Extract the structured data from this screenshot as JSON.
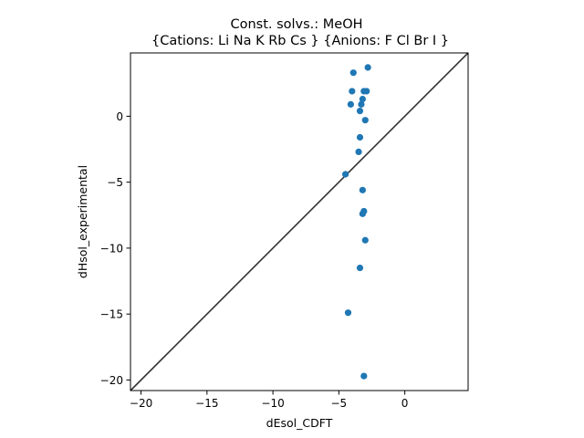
{
  "chart_data": {
    "type": "scatter",
    "title_line1": "Const. solvs.: MeOH",
    "title_line2": "{Cations: Li Na K Rb Cs } {Anions: F Cl Br I }",
    "xlabel": "dEsol_CDFT",
    "ylabel": "dHsol_experimental",
    "xlim": [
      -20.8,
      4.8
    ],
    "ylim": [
      -20.8,
      4.8
    ],
    "xticks": [
      -20,
      -15,
      -10,
      -5,
      0
    ],
    "yticks": [
      -20,
      -15,
      -10,
      -5,
      0
    ],
    "xtick_labels": [
      "−20",
      "−15",
      "−10",
      "−5",
      "0"
    ],
    "ytick_labels": [
      "−20",
      "−15",
      "−10",
      "−5",
      "0"
    ],
    "grid": false,
    "reference_line": "y = x",
    "marker_color": "#1f77b4",
    "line_color": "#333333",
    "points": [
      {
        "x": -3.9,
        "y": 3.3
      },
      {
        "x": -2.8,
        "y": 3.7
      },
      {
        "x": -4.0,
        "y": 1.9
      },
      {
        "x": -3.1,
        "y": 1.9
      },
      {
        "x": -2.9,
        "y": 1.9
      },
      {
        "x": -3.2,
        "y": 1.3
      },
      {
        "x": -4.1,
        "y": 0.9
      },
      {
        "x": -3.3,
        "y": 0.9
      },
      {
        "x": -3.4,
        "y": 0.4
      },
      {
        "x": -3.0,
        "y": -0.3
      },
      {
        "x": -3.4,
        "y": -1.6
      },
      {
        "x": -3.5,
        "y": -2.7
      },
      {
        "x": -4.5,
        "y": -4.4
      },
      {
        "x": -3.2,
        "y": -5.6
      },
      {
        "x": -3.1,
        "y": -7.2
      },
      {
        "x": -3.2,
        "y": -7.4
      },
      {
        "x": -3.0,
        "y": -9.4
      },
      {
        "x": -3.4,
        "y": -11.5
      },
      {
        "x": -4.3,
        "y": -14.9
      },
      {
        "x": -3.1,
        "y": -19.7
      }
    ]
  }
}
